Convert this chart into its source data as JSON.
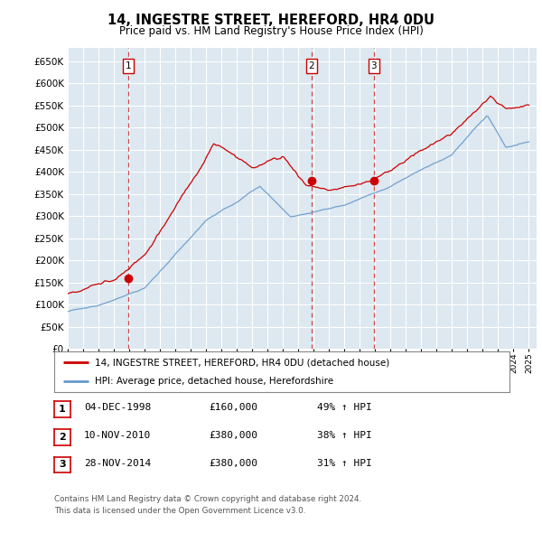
{
  "title": "14, INGESTRE STREET, HEREFORD, HR4 0DU",
  "subtitle": "Price paid vs. HM Land Registry's House Price Index (HPI)",
  "ytick_values": [
    0,
    50000,
    100000,
    150000,
    200000,
    250000,
    300000,
    350000,
    400000,
    450000,
    500000,
    550000,
    600000,
    650000
  ],
  "xlim_start": 1995.0,
  "xlim_end": 2025.5,
  "ylim_min": 0,
  "ylim_max": 680000,
  "sale_dates": [
    1998.92,
    2010.86,
    2014.91
  ],
  "sale_prices": [
    160000,
    380000,
    380000
  ],
  "sale_labels": [
    "1",
    "2",
    "3"
  ],
  "legend_line1": "14, INGESTRE STREET, HEREFORD, HR4 0DU (detached house)",
  "legend_line2": "HPI: Average price, detached house, Herefordshire",
  "table_rows": [
    {
      "num": "1",
      "date": "04-DEC-1998",
      "price": "£160,000",
      "change": "49% ↑ HPI"
    },
    {
      "num": "2",
      "date": "10-NOV-2010",
      "price": "£380,000",
      "change": "38% ↑ HPI"
    },
    {
      "num": "3",
      "date": "28-NOV-2014",
      "price": "£380,000",
      "change": "31% ↑ HPI"
    }
  ],
  "footnote1": "Contains HM Land Registry data © Crown copyright and database right 2024.",
  "footnote2": "This data is licensed under the Open Government Licence v3.0.",
  "red_color": "#cc0000",
  "blue_color": "#6699cc",
  "bg_color": "#dde8f0",
  "grid_color": "#ffffff"
}
